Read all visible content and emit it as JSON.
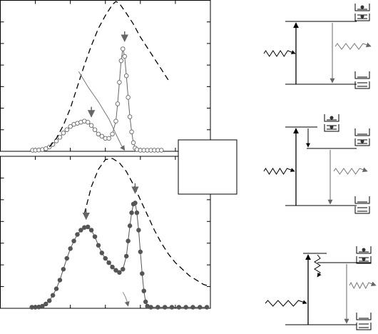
{
  "chart_data": [
    {
      "type": "scatter",
      "xlim": [
        0,
        6
      ],
      "ylim": [
        0,
        7
      ],
      "xticks": [
        1,
        2,
        3,
        4,
        5
      ],
      "yticks": [
        1,
        2,
        3,
        4,
        5,
        6
      ],
      "series": [
        {
          "style": "open-circle",
          "color": "#666666",
          "x": [
            0.92,
            1.0,
            1.1,
            1.2,
            1.3,
            1.4,
            1.5,
            1.6,
            1.7,
            1.8,
            1.9,
            2.0,
            2.1,
            2.2,
            2.3,
            2.4,
            2.5,
            2.6,
            2.7,
            2.8,
            2.9,
            3.0,
            3.1,
            3.2,
            3.3,
            3.35,
            3.4,
            3.45,
            3.5,
            3.55,
            3.6,
            3.65,
            3.7,
            3.75,
            3.8,
            3.85,
            3.9,
            4.0,
            4.1,
            4.2,
            4.3,
            4.4,
            4.5,
            4.6
          ],
          "values": [
            0.05,
            0.05,
            0.06,
            0.08,
            0.12,
            0.2,
            0.32,
            0.48,
            0.65,
            0.85,
            1.0,
            1.15,
            1.25,
            1.3,
            1.35,
            1.4,
            1.35,
            1.2,
            1.0,
            0.8,
            0.7,
            0.6,
            0.6,
            0.8,
            1.4,
            2.2,
            3.2,
            4.2,
            4.75,
            4.4,
            3.5,
            2.5,
            1.6,
            0.9,
            0.4,
            0.15,
            0.08,
            0.05,
            0.05,
            0.05,
            0.05,
            0.05,
            0.05,
            0.05
          ]
        },
        {
          "style": "dashed",
          "color": "#000000",
          "x": [
            1.4,
            1.6,
            1.8,
            2.0,
            2.2,
            2.4,
            2.6,
            2.8,
            3.0,
            3.2,
            3.3,
            3.4,
            3.6,
            3.8,
            4.0,
            4.2,
            4.4,
            4.6,
            4.8
          ],
          "values": [
            0.2,
            0.6,
            1.2,
            2.0,
            3.0,
            4.0,
            4.9,
            5.7,
            6.3,
            6.8,
            6.95,
            6.85,
            6.4,
            5.9,
            5.3,
            4.8,
            4.3,
            3.8,
            3.3
          ]
        },
        {
          "style": "arrow-line",
          "color": "#777777",
          "x": [
            2.24,
            2.5,
            2.8,
            3.1,
            3.3,
            3.45,
            3.55
          ],
          "values": [
            3.7,
            3.0,
            2.3,
            1.5,
            0.8,
            0.3,
            0.05
          ]
        }
      ],
      "arrows": [
        {
          "x": 2.6,
          "y": 1.6
        },
        {
          "x": 3.55,
          "y": 5.1
        }
      ]
    },
    {
      "type": "scatter",
      "xlim": [
        0,
        6
      ],
      "ylim": [
        0,
        7
      ],
      "xticks": [
        1,
        2,
        3,
        4,
        5
      ],
      "yticks": [
        1,
        2,
        3,
        4,
        5,
        6
      ],
      "series": [
        {
          "style": "filled-circle",
          "color": "#555555",
          "x": [
            0.9,
            1.0,
            1.1,
            1.2,
            1.3,
            1.4,
            1.5,
            1.6,
            1.7,
            1.8,
            1.9,
            2.0,
            2.1,
            2.2,
            2.3,
            2.4,
            2.5,
            2.6,
            2.7,
            2.8,
            2.9,
            3.0,
            3.1,
            3.2,
            3.3,
            3.4,
            3.5,
            3.6,
            3.65,
            3.7,
            3.75,
            3.8,
            3.85,
            3.9,
            3.95,
            4.0,
            4.05,
            4.1,
            4.15,
            4.2,
            4.3,
            4.5,
            4.7,
            4.9,
            5.1,
            5.3,
            5.5,
            5.7,
            5.9
          ],
          "values": [
            0.05,
            0.05,
            0.06,
            0.1,
            0.2,
            0.35,
            0.6,
            0.9,
            1.3,
            1.8,
            2.3,
            2.75,
            3.1,
            3.4,
            3.6,
            3.72,
            3.75,
            3.6,
            3.3,
            2.9,
            2.55,
            2.3,
            2.1,
            1.9,
            1.75,
            1.65,
            1.8,
            2.4,
            3.1,
            3.8,
            4.4,
            4.8,
            4.85,
            4.4,
            3.6,
            2.6,
            1.6,
            0.8,
            0.3,
            0.1,
            0.05,
            0.05,
            0.05,
            0.05,
            0.05,
            0.05,
            0.05,
            0.05,
            0.05
          ]
        },
        {
          "style": "dashed",
          "color": "#000000",
          "x": [
            2.4,
            2.6,
            2.8,
            3.0,
            3.2,
            3.4,
            3.6,
            3.8,
            4.0,
            4.2,
            4.4,
            4.6,
            4.8,
            5.0,
            5.2,
            5.4,
            5.6,
            5.8,
            6.0
          ],
          "values": [
            4.35,
            5.6,
            6.4,
            6.85,
            6.9,
            6.7,
            6.3,
            5.7,
            5.0,
            4.3,
            3.6,
            3.0,
            2.5,
            2.1,
            1.8,
            1.5,
            1.3,
            1.1,
            1.0
          ]
        },
        {
          "style": "arrow-line",
          "color": "#888888",
          "x": [
            3.5,
            3.58,
            3.62,
            3.65
          ],
          "values": [
            0.75,
            0.5,
            0.3,
            0.1
          ]
        }
      ],
      "arrows": [
        {
          "x": 2.45,
          "y": 4.1
        },
        {
          "x": 3.85,
          "y": 5.3
        }
      ]
    }
  ]
}
